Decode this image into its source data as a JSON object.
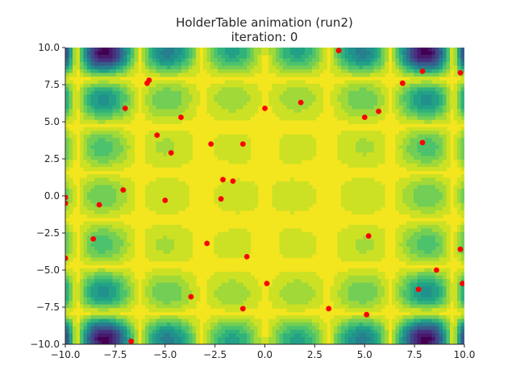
{
  "chart_data": {
    "type": "scatter",
    "background": "contourf",
    "colormap": "viridis",
    "title": "HolderTable animation (run2)",
    "subtitle": "iteration: 0",
    "xlabel": "",
    "ylabel": "",
    "xlim": [
      -10.0,
      10.0
    ],
    "ylim": [
      -10.0,
      10.0
    ],
    "grid": false,
    "xticks": [
      "−10.0",
      "−7.5",
      "−5.0",
      "−2.5",
      "0.0",
      "2.5",
      "5.0",
      "7.5",
      "10.0"
    ],
    "yticks": [
      "10.0",
      "7.5",
      "5.0",
      "2.5",
      "0.0",
      "−2.5",
      "−5.0",
      "−7.5",
      "−10.0"
    ],
    "point_color": "#ff0000",
    "points": [
      {
        "x": 3.7,
        "y": 9.8
      },
      {
        "x": 7.9,
        "y": 8.4
      },
      {
        "x": 9.8,
        "y": 8.3
      },
      {
        "x": 6.9,
        "y": 7.6
      },
      {
        "x": -5.8,
        "y": 7.8
      },
      {
        "x": -5.9,
        "y": 7.6
      },
      {
        "x": 1.8,
        "y": 6.3
      },
      {
        "x": -7.0,
        "y": 5.9
      },
      {
        "x": 0.0,
        "y": 5.9
      },
      {
        "x": 5.7,
        "y": 5.7
      },
      {
        "x": 5.0,
        "y": 5.3
      },
      {
        "x": -4.2,
        "y": 5.3
      },
      {
        "x": -5.4,
        "y": 4.1
      },
      {
        "x": -2.7,
        "y": 3.5
      },
      {
        "x": -1.1,
        "y": 3.5
      },
      {
        "x": 7.9,
        "y": 3.6
      },
      {
        "x": -4.7,
        "y": 2.9
      },
      {
        "x": -2.1,
        "y": 1.1
      },
      {
        "x": -1.6,
        "y": 1.0
      },
      {
        "x": -7.1,
        "y": 0.4
      },
      {
        "x": -10.0,
        "y": -0.1
      },
      {
        "x": -10.0,
        "y": -0.5
      },
      {
        "x": -8.3,
        "y": -0.6
      },
      {
        "x": -5.0,
        "y": -0.3
      },
      {
        "x": -2.2,
        "y": -0.2
      },
      {
        "x": 5.2,
        "y": -2.7
      },
      {
        "x": -8.6,
        "y": -2.9
      },
      {
        "x": -2.9,
        "y": -3.2
      },
      {
        "x": -0.9,
        "y": -4.1
      },
      {
        "x": -10.0,
        "y": -4.2
      },
      {
        "x": 9.8,
        "y": -3.6
      },
      {
        "x": 8.6,
        "y": -5.0
      },
      {
        "x": 0.1,
        "y": -5.9
      },
      {
        "x": 9.9,
        "y": -5.9
      },
      {
        "x": 7.7,
        "y": -6.3
      },
      {
        "x": -3.7,
        "y": -6.8
      },
      {
        "x": -1.1,
        "y": -7.6
      },
      {
        "x": 3.2,
        "y": -7.6
      },
      {
        "x": 5.1,
        "y": -8.0
      },
      {
        "x": -6.7,
        "y": -9.8
      }
    ]
  }
}
